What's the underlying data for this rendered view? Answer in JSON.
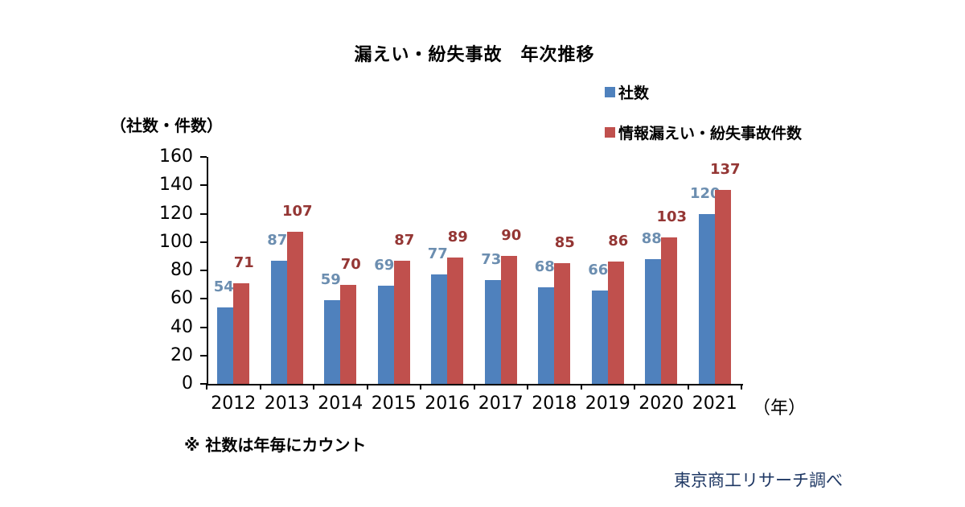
{
  "title": "漏えい・紛失事故　年次推移",
  "y_axis_unit": "（社数・件数）",
  "x_axis_unit": "（年）",
  "footnote": "※ 社数は年毎にカウント",
  "source": "東京商工リサーチ調べ",
  "legend": [
    {
      "label": "社数",
      "color": "#4F81BD"
    },
    {
      "label": "情報漏えい・紛失事故件数",
      "color": "#C0504D"
    }
  ],
  "colors": {
    "series1_bar": "#4F81BD",
    "series2_bar": "#C0504D",
    "series1_label": "#6C8EB0",
    "series2_label": "#943634",
    "axis": "#000000",
    "source_text": "#1F3864"
  },
  "chart_data": {
    "type": "bar",
    "title": "漏えい・紛失事故　年次推移",
    "categories": [
      "2012",
      "2013",
      "2014",
      "2015",
      "2016",
      "2017",
      "2018",
      "2019",
      "2020",
      "2021"
    ],
    "series": [
      {
        "name": "社数",
        "color": "#4F81BD",
        "label_color": "#6C8EB0",
        "values": [
          54,
          87,
          59,
          69,
          77,
          73,
          68,
          66,
          88,
          120
        ]
      },
      {
        "name": "情報漏えい・紛失事故件数",
        "color": "#C0504D",
        "label_color": "#943634",
        "values": [
          71,
          107,
          70,
          87,
          89,
          90,
          85,
          86,
          103,
          137
        ]
      }
    ],
    "xlabel": "（年）",
    "ylabel": "（社数・件数）",
    "ylim": [
      0,
      160
    ],
    "yticks": [
      0,
      20,
      40,
      60,
      80,
      100,
      120,
      140,
      160
    ],
    "grid": false,
    "data_labels": true,
    "legend_position": "top-right"
  }
}
